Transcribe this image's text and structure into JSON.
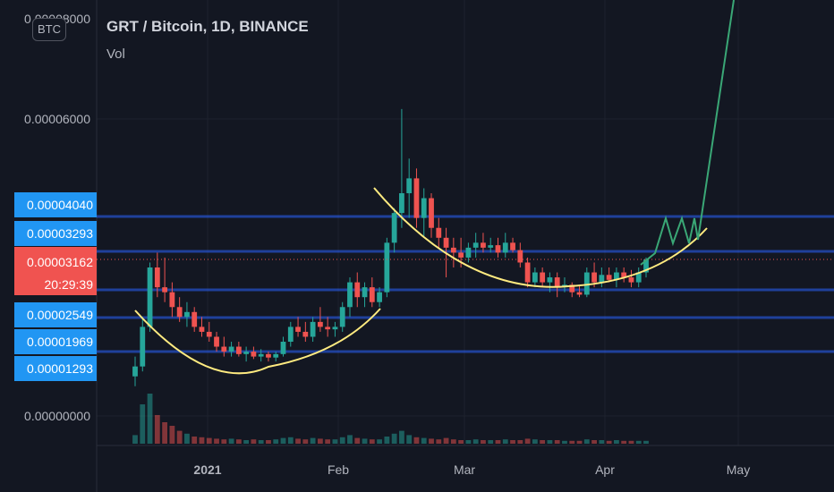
{
  "header": {
    "title": "GRT / Bitcoin, 1D, BINANCE",
    "vol_label": "Vol",
    "currency_button": "BTC"
  },
  "colors": {
    "background": "#131722",
    "up": "#26a69a",
    "down": "#ef5350",
    "level_line": "#2962ff",
    "tag": "#2196f3",
    "last_tag": "#f05350",
    "curve": "#ffeb80",
    "projection": "#3aa776"
  },
  "chart_data": {
    "type": "candlestick",
    "title": "GRT / Bitcoin, 1D, BINANCE",
    "y_ticks": [
      "0.00006000",
      "0.00000000"
    ],
    "y_top_partial_label": "0.00008000",
    "x_ticks": [
      "2021",
      "Feb",
      "Mar",
      "Apr",
      "May"
    ],
    "price_levels": [
      "0.00004040",
      "0.00003293",
      "0.00002549",
      "0.00001969",
      "0.00001293"
    ],
    "last_price": "0.00003162",
    "countdown": "20:29:39",
    "ohlc_approx": [
      [
        8e-06,
        1.2e-05,
        6e-06,
        1e-05
      ],
      [
        1e-05,
        2e-05,
        9e-06,
        1.8e-05
      ],
      [
        1.8e-05,
        3.1e-05,
        1.7e-05,
        3e-05
      ],
      [
        3e-05,
        3.3e-05,
        2.4e-05,
        2.6e-05
      ],
      [
        2.6e-05,
        3.2e-05,
        2.3e-05,
        2.5e-05
      ],
      [
        2.5e-05,
        2.7e-05,
        2e-05,
        2.2e-05
      ],
      [
        2.2e-05,
        2.4e-05,
        1.9e-05,
        2e-05
      ],
      [
        2e-05,
        2.3e-05,
        1.8e-05,
        2.1e-05
      ],
      [
        2.1e-05,
        2.2e-05,
        1.7e-05,
        1.8e-05
      ],
      [
        1.8e-05,
        2e-05,
        1.6e-05,
        1.7e-05
      ],
      [
        1.7e-05,
        1.9e-05,
        1.5e-05,
        1.6e-05
      ],
      [
        1.6e-05,
        1.7e-05,
        1.3e-05,
        1.4e-05
      ],
      [
        1.4e-05,
        1.6e-05,
        1.2e-05,
        1.3e-05
      ],
      [
        1.3e-05,
        1.5e-05,
        1.2e-05,
        1.4e-05
      ],
      [
        1.4e-05,
        1.5e-05,
        1.2e-05,
        1.25e-05
      ],
      [
        1.25e-05,
        1.4e-05,
        1.1e-05,
        1.3e-05
      ],
      [
        1.3e-05,
        1.4e-05,
        1.15e-05,
        1.2e-05
      ],
      [
        1.2e-05,
        1.35e-05,
        1.1e-05,
        1.25e-05
      ],
      [
        1.25e-05,
        1.3e-05,
        1.1e-05,
        1.18e-05
      ],
      [
        1.18e-05,
        1.3e-05,
        1.1e-05,
        1.25e-05
      ],
      [
        1.25e-05,
        1.6e-05,
        1.2e-05,
        1.5e-05
      ],
      [
        1.5e-05,
        1.9e-05,
        1.4e-05,
        1.8e-05
      ],
      [
        1.8e-05,
        2e-05,
        1.6e-05,
        1.7e-05
      ],
      [
        1.7e-05,
        1.9e-05,
        1.5e-05,
        1.6e-05
      ],
      [
        1.6e-05,
        2e-05,
        1.5e-05,
        1.9e-05
      ],
      [
        1.9e-05,
        2.2e-05,
        1.7e-05,
        1.8e-05
      ],
      [
        1.8e-05,
        2e-05,
        1.6e-05,
        1.75e-05
      ],
      [
        1.75e-05,
        1.9e-05,
        1.6e-05,
        1.8e-05
      ],
      [
        1.8e-05,
        2.3e-05,
        1.7e-05,
        2.2e-05
      ],
      [
        2.2e-05,
        2.8e-05,
        2e-05,
        2.7e-05
      ],
      [
        2.7e-05,
        2.9e-05,
        2.2e-05,
        2.4e-05
      ],
      [
        2.4e-05,
        2.7e-05,
        2.2e-05,
        2.6e-05
      ],
      [
        2.6e-05,
        2.8e-05,
        2.2e-05,
        2.3e-05
      ],
      [
        2.3e-05,
        2.6e-05,
        2.2e-05,
        2.5e-05
      ],
      [
        2.5e-05,
        3.6e-05,
        2.4e-05,
        3.5e-05
      ],
      [
        3.5e-05,
        4.2e-05,
        3.3e-05,
        4.1e-05
      ],
      [
        4.1e-05,
        6.2e-05,
        3.8e-05,
        4.5e-05
      ],
      [
        4.5e-05,
        5.2e-05,
        4e-05,
        4.8e-05
      ],
      [
        4.8e-05,
        5e-05,
        3.8e-05,
        4e-05
      ],
      [
        4e-05,
        4.6e-05,
        3.6e-05,
        4.4e-05
      ],
      [
        4.4e-05,
        4.5e-05,
        3.6e-05,
        3.8e-05
      ],
      [
        3.8e-05,
        4e-05,
        3.4e-05,
        3.6e-05
      ],
      [
        3.6e-05,
        3.8e-05,
        2.8e-05,
        3.4e-05
      ],
      [
        3.4e-05,
        3.6e-05,
        3e-05,
        3.3e-05
      ],
      [
        3.3e-05,
        3.6e-05,
        3e-05,
        3.2e-05
      ],
      [
        3.2e-05,
        3.5e-05,
        3.1e-05,
        3.4e-05
      ],
      [
        3.4e-05,
        3.7e-05,
        3.2e-05,
        3.5e-05
      ],
      [
        3.5e-05,
        3.7e-05,
        3.3e-05,
        3.4e-05
      ],
      [
        3.4e-05,
        3.6e-05,
        3.3e-05,
        3.45e-05
      ],
      [
        3.45e-05,
        3.6e-05,
        3.2e-05,
        3.3e-05
      ],
      [
        3.3e-05,
        3.7e-05,
        3.2e-05,
        3.5e-05
      ],
      [
        3.5e-05,
        3.6e-05,
        3.3e-05,
        3.35e-05
      ],
      [
        3.35e-05,
        3.5e-05,
        3e-05,
        3.1e-05
      ],
      [
        3.1e-05,
        3.2e-05,
        2.6e-05,
        2.7e-05
      ],
      [
        2.7e-05,
        3e-05,
        2.6e-05,
        2.9e-05
      ],
      [
        2.9e-05,
        3e-05,
        2.6e-05,
        2.7e-05
      ],
      [
        2.7e-05,
        2.9e-05,
        2.5e-05,
        2.8e-05
      ],
      [
        2.8e-05,
        2.9e-05,
        2.4e-05,
        2.6e-05
      ],
      [
        2.6e-05,
        2.8e-05,
        2.5e-05,
        2.65e-05
      ],
      [
        2.65e-05,
        2.7e-05,
        2.4e-05,
        2.5e-05
      ],
      [
        2.5e-05,
        2.65e-05,
        2.4e-05,
        2.45e-05
      ],
      [
        2.45e-05,
        3e-05,
        2.4e-05,
        2.9e-05
      ],
      [
        2.9e-05,
        3.1e-05,
        2.6e-05,
        2.7e-05
      ],
      [
        2.7e-05,
        3e-05,
        2.6e-05,
        2.85e-05
      ],
      [
        2.85e-05,
        3e-05,
        2.7e-05,
        2.75e-05
      ],
      [
        2.75e-05,
        3e-05,
        2.6e-05,
        2.9e-05
      ],
      [
        2.9e-05,
        3e-05,
        2.7e-05,
        2.8e-05
      ],
      [
        2.8e-05,
        2.95e-05,
        2.6e-05,
        2.7e-05
      ],
      [
        2.7e-05,
        3e-05,
        2.6e-05,
        2.9e-05
      ],
      [
        2.9e-05,
        3.2e-05,
        2.8e-05,
        3.16e-05
      ]
    ],
    "volume_approx": [
      12,
      55,
      70,
      40,
      30,
      25,
      18,
      14,
      10,
      9,
      8,
      7,
      6,
      7,
      6,
      5,
      6,
      5,
      5,
      6,
      8,
      9,
      7,
      6,
      8,
      7,
      6,
      6,
      9,
      12,
      8,
      7,
      6,
      6,
      10,
      14,
      18,
      12,
      9,
      8,
      7,
      6,
      8,
      6,
      5,
      5,
      6,
      5,
      5,
      5,
      6,
      5,
      5,
      7,
      6,
      5,
      5,
      5,
      4,
      4,
      4,
      6,
      5,
      5,
      4,
      5,
      4,
      4,
      4,
      4
    ]
  }
}
